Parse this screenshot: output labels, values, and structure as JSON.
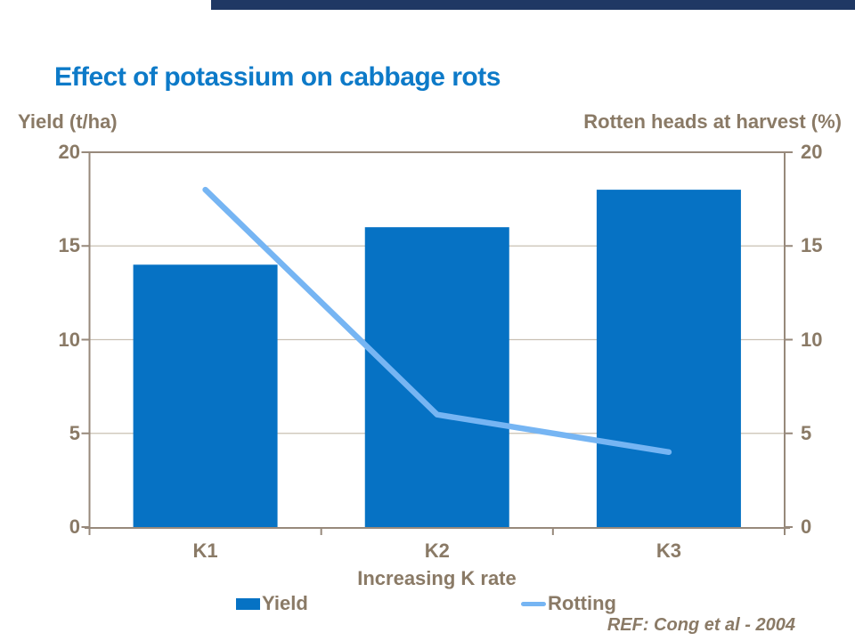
{
  "top_bar": {
    "color": "#1f3864"
  },
  "title": {
    "text": "Effect of potassium on cabbage rots",
    "color": "#0d7ac8"
  },
  "footer": {
    "reference": "REF: Cong et al - 2004"
  },
  "colors": {
    "bar": "#0672c4",
    "line": "#76b5f3",
    "text": "#8a7a66",
    "axis": "#97897b",
    "gridline": "#c9c0b3",
    "accent_bar": "#1f3864"
  },
  "legend": {
    "items": [
      {
        "label": "Yield",
        "marker": "square"
      },
      {
        "label": "Rotting",
        "marker": "line"
      }
    ]
  },
  "chart_data": {
    "type": "bar",
    "subtype": "dual-axis bar + line",
    "title": "Effect of potassium on cabbage rots",
    "categories": [
      "K1",
      "K2",
      "K3"
    ],
    "series": [
      {
        "name": "Yield",
        "type": "bar",
        "axis": "left",
        "values": [
          14,
          16,
          18
        ]
      },
      {
        "name": "Rotting",
        "type": "line",
        "axis": "right",
        "values": [
          18,
          6,
          4
        ]
      }
    ],
    "xlabel": "Increasing K rate",
    "ylabel_left": "Yield (t/ha)",
    "ylabel_right": "Rotten heads at harvest (%)",
    "ylim": [
      0,
      20
    ],
    "yticks": [
      0,
      5,
      10,
      15,
      20
    ],
    "grid": true,
    "legend_position": "bottom"
  }
}
